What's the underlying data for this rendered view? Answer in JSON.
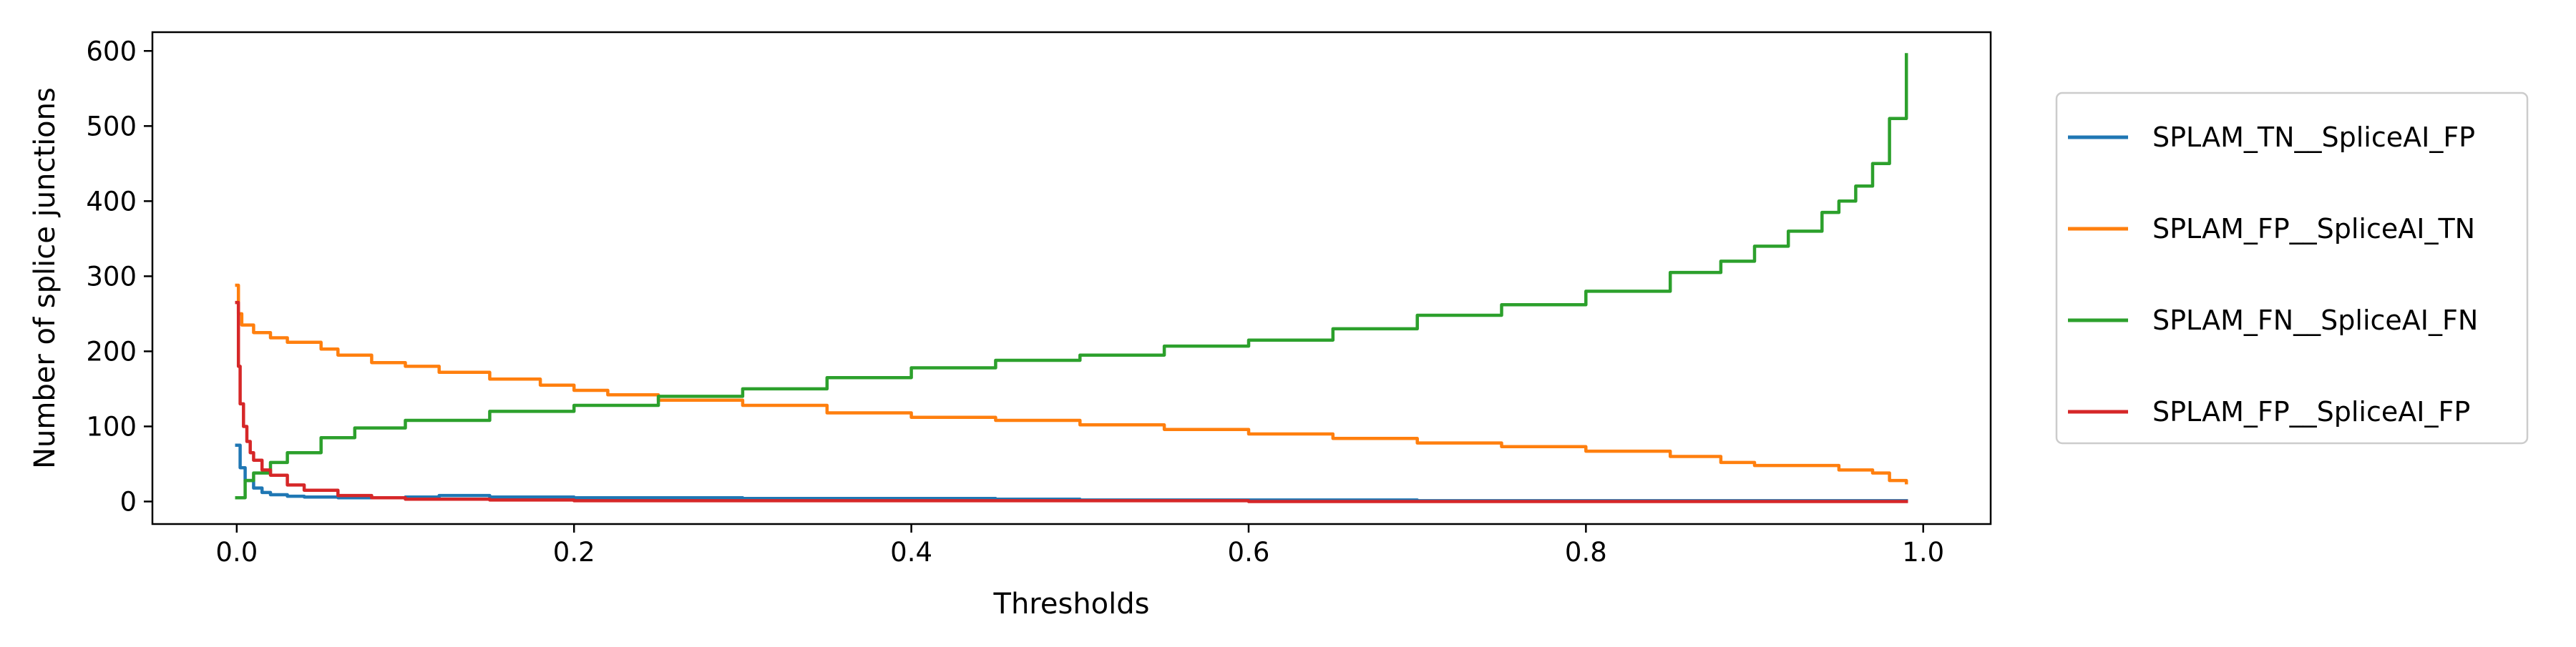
{
  "chart_data": {
    "type": "line",
    "xlabel": "Thresholds",
    "ylabel": "Number of splice junctions",
    "xlim": [
      -0.05,
      1.04
    ],
    "ylim": [
      -30,
      625
    ],
    "xticks": [
      0.0,
      0.2,
      0.4,
      0.6,
      0.8,
      1.0
    ],
    "xtick_labels": [
      "0.0",
      "0.2",
      "0.4",
      "0.6",
      "0.8",
      "1.0"
    ],
    "yticks": [
      0,
      100,
      200,
      300,
      400,
      500,
      600
    ],
    "ytick_labels": [
      "0",
      "100",
      "200",
      "300",
      "400",
      "500",
      "600"
    ],
    "grid": false,
    "legend_placement": "outside-right",
    "series": [
      {
        "name": "SPLAM_TN__SpliceAI_FP",
        "color": "#1f77b4",
        "x": [
          0.0,
          0.002,
          0.005,
          0.01,
          0.015,
          0.02,
          0.03,
          0.04,
          0.06,
          0.08,
          0.1,
          0.12,
          0.15,
          0.2,
          0.3,
          0.4,
          0.45,
          0.5,
          0.6,
          0.7,
          0.8,
          0.9,
          0.99
        ],
        "y": [
          75,
          45,
          28,
          18,
          12,
          9,
          7,
          6,
          5,
          5,
          6,
          8,
          6,
          5,
          4,
          4,
          3,
          2,
          2,
          1,
          1,
          1,
          1
        ]
      },
      {
        "name": "SPLAM_FP__SpliceAI_TN",
        "color": "#ff7f0e",
        "x": [
          0.0,
          0.001,
          0.003,
          0.01,
          0.02,
          0.03,
          0.05,
          0.06,
          0.08,
          0.1,
          0.12,
          0.15,
          0.18,
          0.2,
          0.22,
          0.25,
          0.3,
          0.35,
          0.4,
          0.45,
          0.5,
          0.55,
          0.6,
          0.65,
          0.7,
          0.75,
          0.8,
          0.85,
          0.88,
          0.9,
          0.95,
          0.97,
          0.98,
          0.99
        ],
        "y": [
          288,
          250,
          235,
          225,
          218,
          212,
          203,
          195,
          185,
          180,
          172,
          163,
          155,
          148,
          142,
          135,
          128,
          118,
          112,
          108,
          102,
          96,
          90,
          84,
          78,
          73,
          67,
          60,
          52,
          48,
          42,
          38,
          28,
          25
        ]
      },
      {
        "name": "SPLAM_FN__SpliceAI_FN",
        "color": "#2ca02c",
        "x": [
          0.0,
          0.005,
          0.01,
          0.02,
          0.03,
          0.05,
          0.07,
          0.1,
          0.15,
          0.2,
          0.25,
          0.3,
          0.35,
          0.4,
          0.45,
          0.5,
          0.55,
          0.6,
          0.65,
          0.7,
          0.75,
          0.8,
          0.85,
          0.88,
          0.9,
          0.92,
          0.94,
          0.95,
          0.96,
          0.97,
          0.98,
          0.99
        ],
        "y": [
          5,
          28,
          38,
          52,
          65,
          85,
          98,
          108,
          120,
          128,
          140,
          150,
          165,
          178,
          188,
          195,
          207,
          215,
          230,
          248,
          262,
          280,
          305,
          320,
          340,
          360,
          385,
          400,
          420,
          450,
          510,
          595
        ]
      },
      {
        "name": "SPLAM_FP__SpliceAI_FP",
        "color": "#d62728",
        "x": [
          0.0,
          0.001,
          0.002,
          0.004,
          0.006,
          0.008,
          0.01,
          0.015,
          0.02,
          0.03,
          0.04,
          0.06,
          0.08,
          0.1,
          0.15,
          0.2,
          0.4,
          0.6,
          0.8,
          0.99
        ],
        "y": [
          265,
          180,
          130,
          100,
          80,
          65,
          55,
          42,
          35,
          22,
          15,
          8,
          5,
          3,
          2,
          1,
          1,
          0,
          0,
          0
        ]
      }
    ]
  }
}
